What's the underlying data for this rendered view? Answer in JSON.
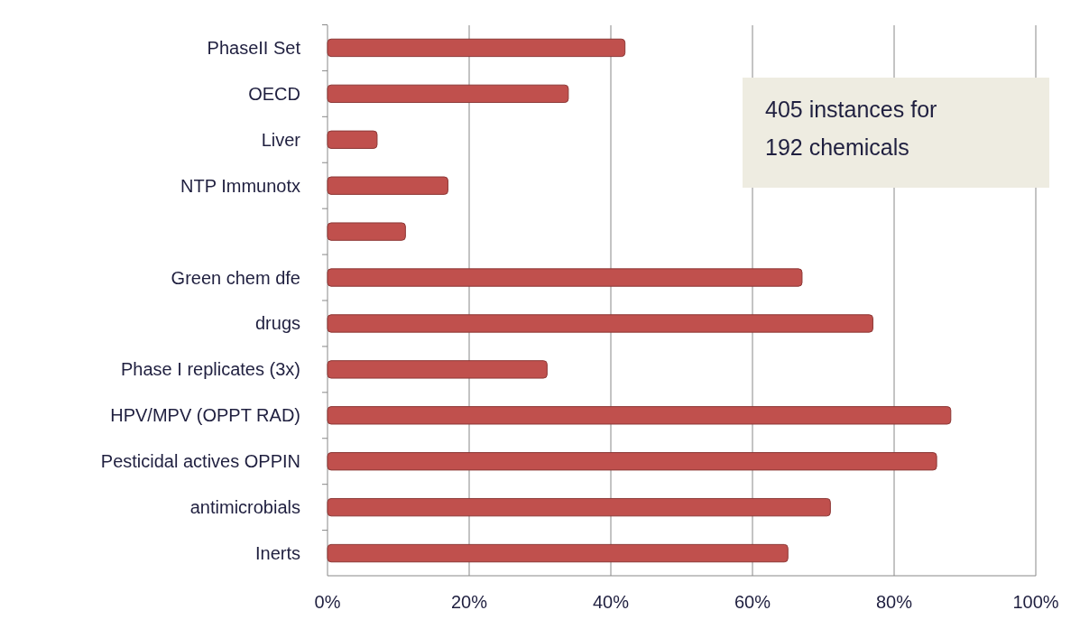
{
  "chart_data": {
    "type": "bar",
    "orientation": "horizontal",
    "categories": [
      "PhaseII Set",
      "OECD",
      "Liver",
      "NTP Immunotx",
      null,
      "Green chem dfe",
      "drugs",
      "Phase I replicates (3x)",
      "HPV/MPV (OPPT RAD)",
      "Pesticidal actives OPPIN",
      "antimicrobials",
      "Inerts"
    ],
    "values": [
      42,
      34,
      7,
      17,
      11,
      67,
      77,
      31,
      88,
      86,
      71,
      65
    ],
    "color": "#c0504d",
    "xlim": [
      0,
      100
    ],
    "xticks": [
      {
        "value": 0,
        "label": "0%"
      },
      {
        "value": 20,
        "label": "20%"
      },
      {
        "value": 40,
        "label": "40%"
      },
      {
        "value": 60,
        "label": "60%"
      },
      {
        "value": 80,
        "label": "80%"
      },
      {
        "value": 100,
        "label": "100%"
      }
    ],
    "grid": "x",
    "annotations": [
      "405 instances for 192 chemicals"
    ]
  }
}
